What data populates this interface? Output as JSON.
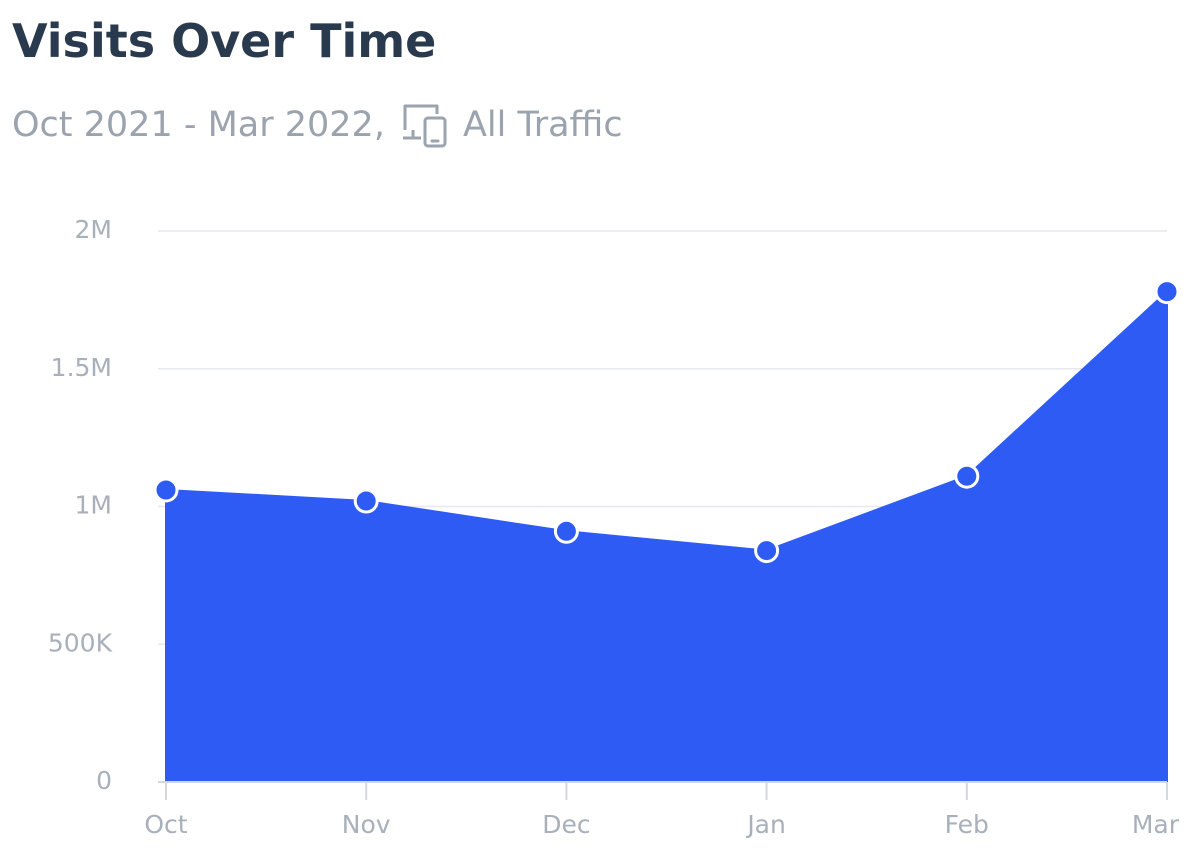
{
  "header": {
    "title": "Visits Over Time",
    "date_range": "Oct 2021 - Mar 2022,",
    "traffic_type": "All Traffic",
    "traffic_icon": "devices-icon"
  },
  "colors": {
    "area": "#2f5bf5",
    "grid": "#e6e9ee",
    "axis": "#d3d8df",
    "ticks": "#a8b0bb",
    "title": "#2a3a4e",
    "subtitle": "#9aa3ae"
  },
  "chart_data": {
    "type": "area",
    "title": "Visits Over Time",
    "subtitle": "Oct 2021 - Mar 2022, All Traffic",
    "xlabel": "",
    "ylabel": "",
    "categories": [
      "Oct",
      "Nov",
      "Dec",
      "Jan",
      "Feb",
      "Mar"
    ],
    "series": [
      {
        "values": [
          1060000,
          1020000,
          910000,
          840000,
          1110000,
          1780000
        ]
      }
    ],
    "ylim": [
      0,
      2000000
    ],
    "yticks": [
      0,
      500000,
      1000000,
      1500000,
      2000000
    ],
    "ytick_labels": [
      "0",
      "500K",
      "1M",
      "1.5M",
      "2M"
    ],
    "grid": true,
    "legend": "none",
    "markers": true
  }
}
